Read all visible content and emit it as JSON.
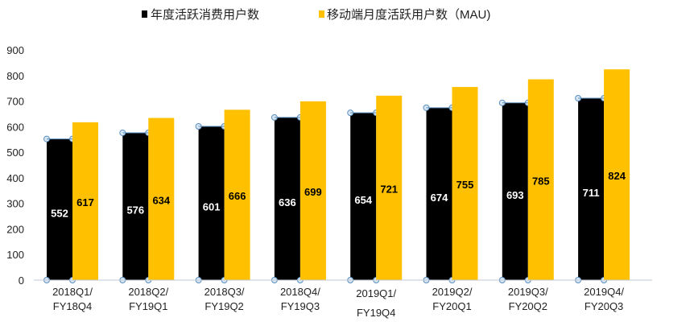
{
  "chart_data": {
    "type": "bar",
    "title": "",
    "xlabel": "",
    "ylabel": "",
    "ylim": [
      0,
      900
    ],
    "yticks": [
      "0",
      "100",
      "200",
      "300",
      "400",
      "500",
      "600",
      "700",
      "800",
      "900"
    ],
    "grid": false,
    "legend_position": "top",
    "categories": [
      [
        "2018Q1/",
        "FY18Q4"
      ],
      [
        "2018Q2/",
        "FY19Q1"
      ],
      [
        "2018Q3/",
        "FY19Q2"
      ],
      [
        "2018Q4/",
        "FY19Q3"
      ],
      [
        "2019Q1/",
        "FY19Q4"
      ],
      [
        "2019Q2/",
        "FY20Q1"
      ],
      [
        "2019Q3/",
        "FY20Q2"
      ],
      [
        "2019Q4/",
        "FY20Q3"
      ]
    ],
    "series": [
      {
        "name": "年度活跃消费用户数",
        "color": "#000000",
        "label_color": "#ffffff",
        "values": [
          552,
          576,
          601,
          636,
          654,
          674,
          693,
          711
        ]
      },
      {
        "name": "移动端月度活跃用户数（MAU)",
        "color": "#FFC000",
        "label_color": "#000000",
        "values": [
          617,
          634,
          666,
          699,
          721,
          755,
          785,
          824
        ]
      }
    ]
  }
}
